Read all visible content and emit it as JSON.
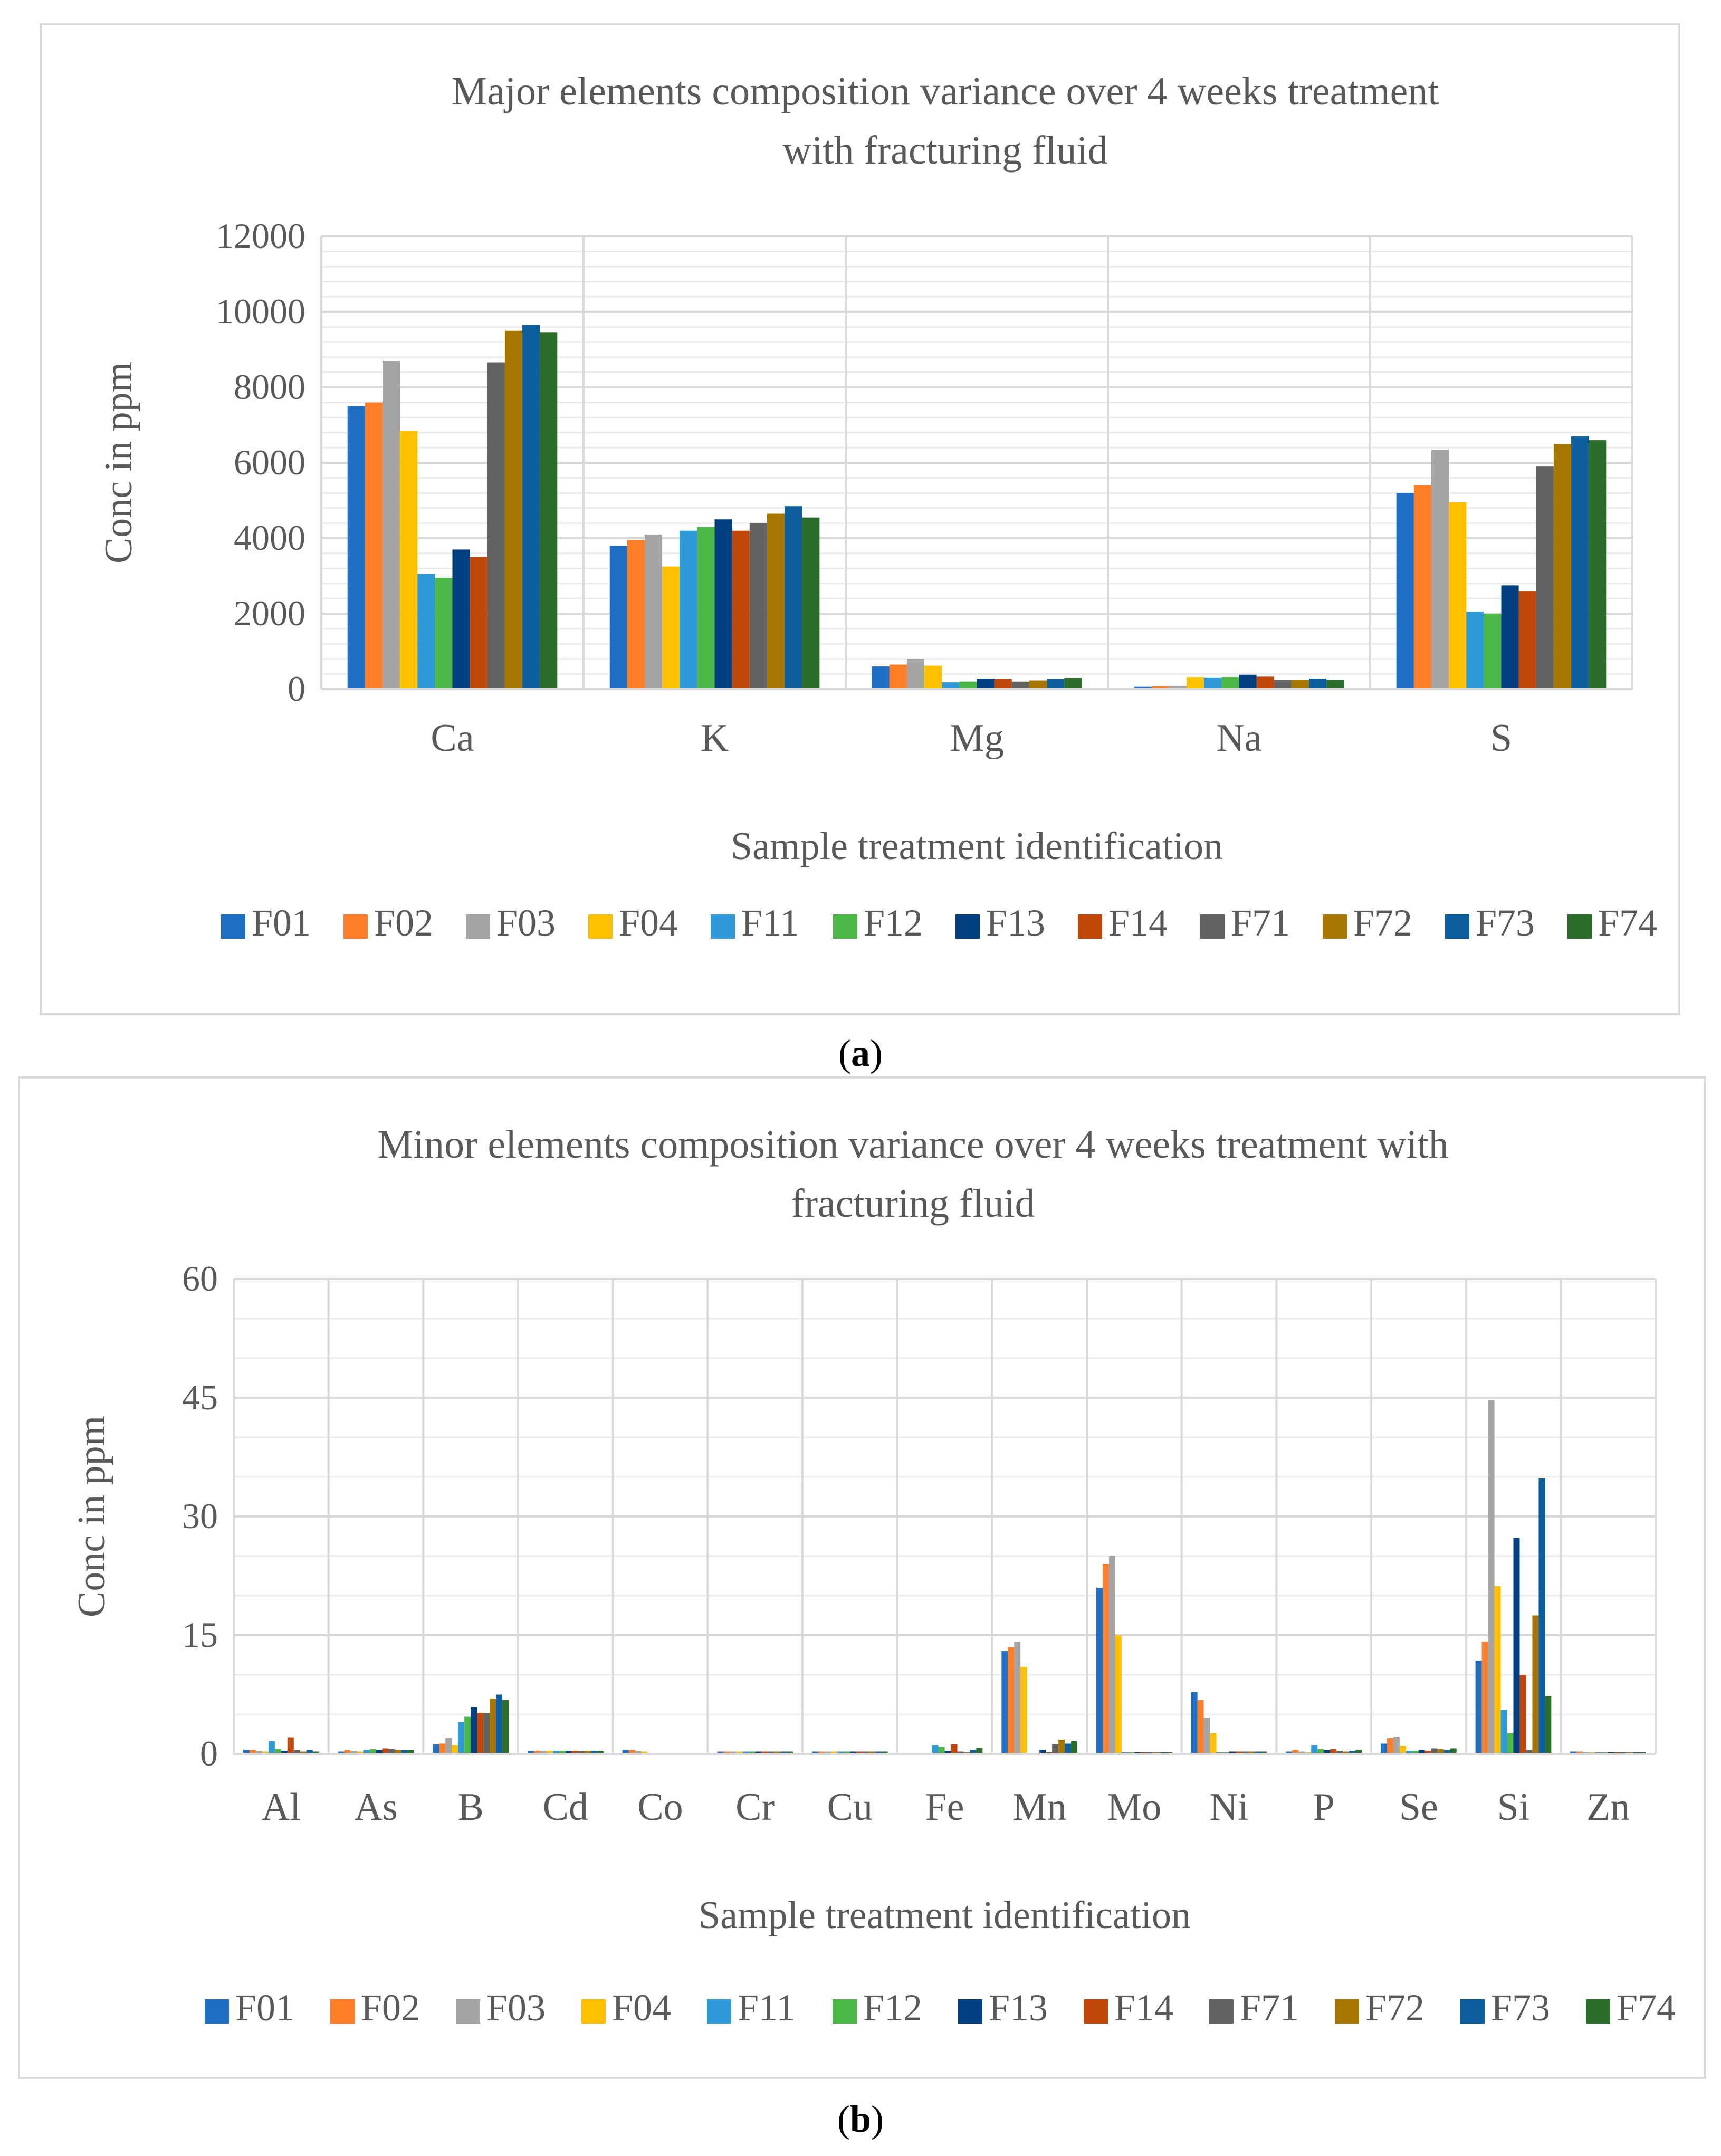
{
  "captions": {
    "a": "a",
    "b": "b"
  },
  "legend_colors": {
    "F01": "#1f6fc5",
    "F02": "#ff7f2a",
    "F03": "#a5a5a5",
    "F04": "#ffc000",
    "F11": "#2e9bd8",
    "F12": "#4db848",
    "F13": "#003f7f",
    "F14": "#c1470a",
    "F71": "#636363",
    "F72": "#a67800",
    "F73": "#0e5fa0",
    "F74": "#2a6e2a"
  },
  "chart_data": [
    {
      "id": "a",
      "type": "bar",
      "title": "Major elements composition variance over 4 weeks treatment with fracturing fluid",
      "title_lines": [
        "Major elements composition variance over 4 weeks treatment",
        "with fracturing fluid"
      ],
      "xlabel": "Sample treatment identification",
      "ylabel": "Conc in ppm",
      "ylim": [
        0,
        12000
      ],
      "yticks": [
        0,
        2000,
        4000,
        6000,
        8000,
        10000,
        12000
      ],
      "grid": true,
      "legend_position": "bottom",
      "categories": [
        "Ca",
        "K",
        "Mg",
        "Na",
        "S"
      ],
      "series": [
        {
          "name": "F01",
          "values": [
            7500,
            3800,
            600,
            60,
            5200
          ]
        },
        {
          "name": "F02",
          "values": [
            7600,
            3950,
            650,
            70,
            5400
          ]
        },
        {
          "name": "F03",
          "values": [
            8700,
            4100,
            800,
            80,
            6350
          ]
        },
        {
          "name": "F04",
          "values": [
            6850,
            3250,
            620,
            320,
            4950
          ]
        },
        {
          "name": "F11",
          "values": [
            3050,
            4200,
            180,
            310,
            2050
          ]
        },
        {
          "name": "F12",
          "values": [
            2950,
            4300,
            200,
            320,
            2000
          ]
        },
        {
          "name": "F13",
          "values": [
            3700,
            4500,
            280,
            380,
            2750
          ]
        },
        {
          "name": "F14",
          "values": [
            3500,
            4200,
            270,
            330,
            2600
          ]
        },
        {
          "name": "F71",
          "values": [
            8650,
            4400,
            200,
            240,
            5900
          ]
        },
        {
          "name": "F72",
          "values": [
            9500,
            4650,
            230,
            250,
            6500
          ]
        },
        {
          "name": "F73",
          "values": [
            9650,
            4850,
            270,
            280,
            6700
          ]
        },
        {
          "name": "F74",
          "values": [
            9450,
            4550,
            300,
            250,
            6600
          ]
        }
      ]
    },
    {
      "id": "b",
      "type": "bar",
      "title": "Minor elements composition variance over 4 weeks treatment with fracturing fluid",
      "title_lines": [
        "Minor elements composition variance over 4 weeks treatment with",
        "fracturing fluid"
      ],
      "xlabel": "Sample treatment identification",
      "ylabel": "Conc in ppm",
      "ylim": [
        0,
        60
      ],
      "yticks": [
        0,
        15,
        30,
        45,
        60
      ],
      "grid": true,
      "legend_position": "bottom",
      "categories": [
        "Al",
        "As",
        "B",
        "Cd",
        "Co",
        "Cr",
        "Cu",
        "Fe",
        "Mn",
        "Mo",
        "Ni",
        "P",
        "Se",
        "Si",
        "Zn"
      ],
      "series": [
        {
          "name": "F01",
          "values": [
            0.5,
            0.3,
            1.2,
            0.4,
            0.5,
            0.3,
            0.3,
            0.1,
            13.0,
            21.0,
            7.8,
            0.3,
            1.3,
            11.8,
            0.3
          ]
        },
        {
          "name": "F02",
          "values": [
            0.5,
            0.5,
            1.3,
            0.4,
            0.5,
            0.3,
            0.3,
            0.1,
            13.5,
            24.0,
            6.8,
            0.5,
            2.0,
            14.2,
            0.3
          ]
        },
        {
          "name": "F03",
          "values": [
            0.4,
            0.4,
            2.0,
            0.4,
            0.4,
            0.3,
            0.3,
            0.1,
            14.2,
            25.0,
            4.6,
            0.3,
            2.2,
            44.7,
            0.2
          ]
        },
        {
          "name": "F04",
          "values": [
            0.3,
            0.3,
            1.1,
            0.4,
            0.3,
            0.3,
            0.3,
            0.1,
            11.0,
            15.0,
            2.6,
            0.2,
            1.0,
            21.2,
            0.2
          ]
        },
        {
          "name": "F11",
          "values": [
            1.6,
            0.5,
            4.0,
            0.4,
            0.1,
            0.3,
            0.3,
            1.1,
            0.1,
            0.2,
            0.2,
            1.1,
            0.4,
            5.6,
            0.2
          ]
        },
        {
          "name": "F12",
          "values": [
            0.6,
            0.6,
            4.7,
            0.4,
            0.1,
            0.3,
            0.3,
            0.9,
            0.1,
            0.2,
            0.2,
            0.6,
            0.4,
            2.6,
            0.2
          ]
        },
        {
          "name": "F13",
          "values": [
            0.4,
            0.5,
            5.9,
            0.4,
            0.1,
            0.3,
            0.3,
            0.4,
            0.5,
            0.2,
            0.3,
            0.5,
            0.5,
            27.3,
            0.2
          ]
        },
        {
          "name": "F14",
          "values": [
            2.1,
            0.7,
            5.2,
            0.4,
            0.1,
            0.3,
            0.3,
            1.2,
            0.2,
            0.2,
            0.3,
            0.6,
            0.4,
            10.0,
            0.2
          ]
        },
        {
          "name": "F71",
          "values": [
            0.5,
            0.6,
            5.2,
            0.4,
            0.1,
            0.3,
            0.3,
            0.3,
            1.2,
            0.2,
            0.3,
            0.4,
            0.7,
            0.5,
            0.2
          ]
        },
        {
          "name": "F72",
          "values": [
            0.3,
            0.5,
            7.0,
            0.4,
            0.1,
            0.3,
            0.3,
            0.2,
            1.8,
            0.2,
            0.3,
            0.3,
            0.6,
            17.5,
            0.2
          ]
        },
        {
          "name": "F73",
          "values": [
            0.5,
            0.5,
            7.5,
            0.4,
            0.1,
            0.3,
            0.3,
            0.5,
            1.3,
            0.2,
            0.3,
            0.4,
            0.5,
            34.8,
            0.2
          ]
        },
        {
          "name": "F74",
          "values": [
            0.3,
            0.5,
            6.8,
            0.4,
            0.1,
            0.3,
            0.3,
            0.8,
            1.6,
            0.2,
            0.3,
            0.5,
            0.7,
            7.3,
            0.2
          ]
        }
      ]
    }
  ]
}
